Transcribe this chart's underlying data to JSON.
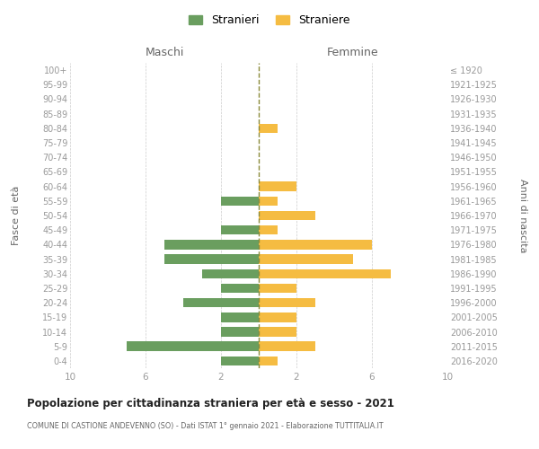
{
  "age_groups": [
    "0-4",
    "5-9",
    "10-14",
    "15-19",
    "20-24",
    "25-29",
    "30-34",
    "35-39",
    "40-44",
    "45-49",
    "50-54",
    "55-59",
    "60-64",
    "65-69",
    "70-74",
    "75-79",
    "80-84",
    "85-89",
    "90-94",
    "95-99",
    "100+"
  ],
  "birth_years": [
    "2016-2020",
    "2011-2015",
    "2006-2010",
    "2001-2005",
    "1996-2000",
    "1991-1995",
    "1986-1990",
    "1981-1985",
    "1976-1980",
    "1971-1975",
    "1966-1970",
    "1961-1965",
    "1956-1960",
    "1951-1955",
    "1946-1950",
    "1941-1945",
    "1936-1940",
    "1931-1935",
    "1926-1930",
    "1921-1925",
    "≤ 1920"
  ],
  "maschi": [
    2,
    7,
    2,
    2,
    4,
    2,
    3,
    5,
    5,
    2,
    0,
    2,
    0,
    0,
    0,
    0,
    0,
    0,
    0,
    0,
    0
  ],
  "femmine": [
    1,
    3,
    2,
    2,
    3,
    2,
    7,
    5,
    6,
    1,
    3,
    1,
    2,
    0,
    0,
    0,
    1,
    0,
    0,
    0,
    0
  ],
  "color_maschi": "#6a9e5f",
  "color_femmine": "#f5bc42",
  "dashed_line_color": "#8a8a3a",
  "title": "Popolazione per cittadinanza straniera per età e sesso - 2021",
  "subtitle": "COMUNE DI CASTIONE ANDEVENNO (SO) - Dati ISTAT 1° gennaio 2021 - Elaborazione TUTTITALIA.IT",
  "xlabel_left": "Maschi",
  "xlabel_right": "Femmine",
  "ylabel_left": "Fasce di età",
  "ylabel_right": "Anni di nascita",
  "legend_maschi": "Stranieri",
  "legend_femmine": "Straniere",
  "xlim": 10,
  "background_color": "#ffffff",
  "grid_color": "#cccccc"
}
